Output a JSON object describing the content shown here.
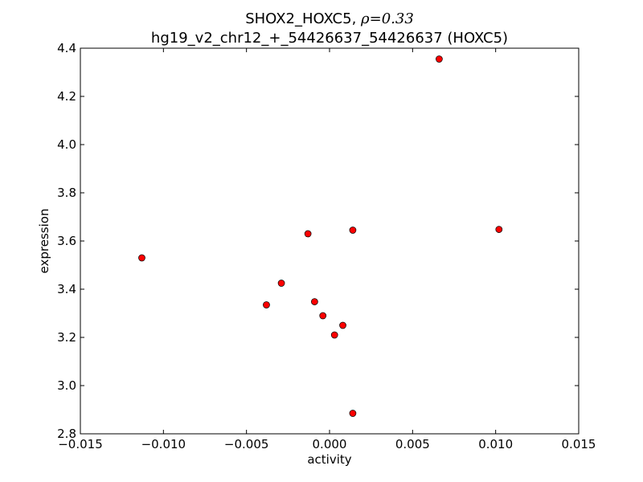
{
  "chart_data": {
    "type": "scatter",
    "title_line1_prefix": "SHOX2_HOXC5, ",
    "title_line1_rho": "ρ=0.33",
    "title_line2": "hg19_v2_chr12_+_54426637_54426637 (HOXC5)",
    "xlabel": "activity",
    "ylabel": "expression",
    "xlim": [
      -0.015,
      0.015
    ],
    "ylim": [
      2.8,
      4.4
    ],
    "xticks": [
      -0.015,
      -0.01,
      -0.005,
      0.0,
      0.005,
      0.01,
      0.015
    ],
    "xtick_labels": [
      "−0.015",
      "−0.010",
      "−0.005",
      "0.000",
      "0.005",
      "0.010",
      "0.015"
    ],
    "yticks": [
      2.8,
      3.0,
      3.2,
      3.4,
      3.6,
      3.8,
      4.0,
      4.2,
      4.4
    ],
    "ytick_labels": [
      "2.8",
      "3.0",
      "3.2",
      "3.4",
      "3.6",
      "3.8",
      "4.0",
      "4.2",
      "4.4"
    ],
    "grid": false,
    "marker_color": "#ff0000",
    "points": [
      {
        "x": -0.0113,
        "y": 3.53
      },
      {
        "x": -0.0038,
        "y": 3.335
      },
      {
        "x": -0.0029,
        "y": 3.425
      },
      {
        "x": -0.0013,
        "y": 3.63
      },
      {
        "x": -0.0009,
        "y": 3.348
      },
      {
        "x": -0.0004,
        "y": 3.29
      },
      {
        "x": 0.0003,
        "y": 3.21
      },
      {
        "x": 0.0008,
        "y": 3.25
      },
      {
        "x": 0.0014,
        "y": 3.645
      },
      {
        "x": 0.0014,
        "y": 2.885
      },
      {
        "x": 0.0066,
        "y": 4.355
      },
      {
        "x": 0.0102,
        "y": 3.648
      }
    ]
  }
}
